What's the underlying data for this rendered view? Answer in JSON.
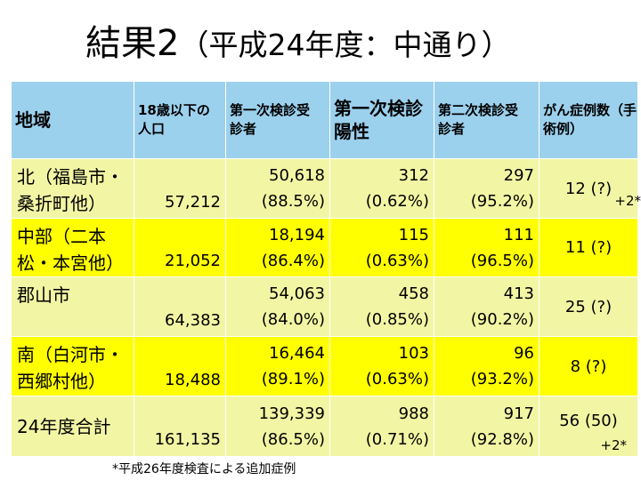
{
  "title": {
    "main": "結果2",
    "sub": "（平成24年度：中通り）"
  },
  "table": {
    "headers": [
      "地域",
      "18歳以下の人口",
      "第一次検診受診者",
      "第一次検診陽性",
      "第二次検診受診者",
      "がん症例数（手術例）"
    ],
    "rows": [
      {
        "region_line1": "北（福島市・",
        "region_line2": "桑折町他）",
        "population": "57,212",
        "first_exam": "50,618",
        "first_exam_pct": "(88.5%)",
        "positive": "312",
        "positive_pct": "(0.62%)",
        "second_exam": "297",
        "second_exam_pct": "(95.2%)",
        "cases": "12 (?)",
        "extra": "+2*"
      },
      {
        "region_line1": "中部（二本",
        "region_line2": "松・本宮他）",
        "population": "21,052",
        "first_exam": "18,194",
        "first_exam_pct": "(86.4%)",
        "positive": "115",
        "positive_pct": "(0.63%)",
        "second_exam": "111",
        "second_exam_pct": "(96.5%)",
        "cases": "11 (?)",
        "extra": ""
      },
      {
        "region_line1": "郡山市",
        "region_line2": "",
        "population": "64,383",
        "first_exam": "54,063",
        "first_exam_pct": "(84.0%)",
        "positive": "458",
        "positive_pct": "(0.85%)",
        "second_exam": "413",
        "second_exam_pct": "(90.2%)",
        "cases": "25 (?)",
        "extra": ""
      },
      {
        "region_line1": "南（白河市・",
        "region_line2": "西郷村他）",
        "population": "18,488",
        "first_exam": "16,464",
        "first_exam_pct": "(89.1%)",
        "positive": "103",
        "positive_pct": "(0.63%)",
        "second_exam": "96",
        "second_exam_pct": "(93.2%)",
        "cases": "8 (?)",
        "extra": ""
      },
      {
        "region_line1": "24年度合計",
        "region_line2": "",
        "population": "161,135",
        "first_exam": "139,339",
        "first_exam_pct": "(86.5%)",
        "positive": "988",
        "positive_pct": "(0.71%)",
        "second_exam": "917",
        "second_exam_pct": "(92.8%)",
        "cases": "56  (50)",
        "extra": "+2*"
      }
    ]
  },
  "footnote": "*平成26年度検査による追加症例",
  "colors": {
    "header_bg": "#9cd1ee",
    "row_light": "#f2f6a4",
    "row_yellow": "#ffff00"
  }
}
